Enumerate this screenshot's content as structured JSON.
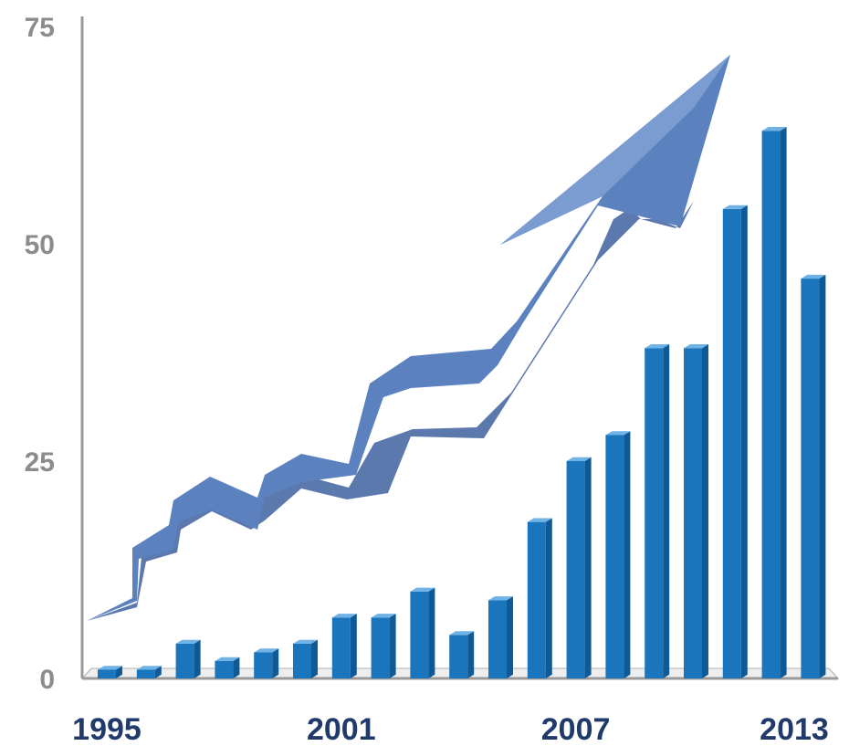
{
  "chart_data": {
    "type": "bar",
    "title": "",
    "xlabel": "",
    "ylabel": "",
    "ylim": [
      0,
      75
    ],
    "yticks": [
      0,
      25,
      50,
      75
    ],
    "x_tick_labels": [
      "1995",
      "2001",
      "2007",
      "2013"
    ],
    "categories": [
      "1995",
      "1996",
      "1997",
      "1998",
      "1999",
      "2000",
      "2001",
      "2002",
      "2003",
      "2004",
      "2005",
      "2006",
      "2007",
      "2008",
      "2009",
      "2010",
      "2011",
      "2012",
      "2013"
    ],
    "values": [
      1,
      1,
      4,
      2,
      3,
      4,
      7,
      7,
      10,
      5,
      9,
      18,
      25,
      28,
      38,
      38,
      54,
      63,
      46
    ],
    "grid": false,
    "legend": "none",
    "decoration": "rising-arrow-icon",
    "colors": {
      "bar": "#1a75bc",
      "bar_dark": "#0f5a96",
      "bar_top": "#6fb2e6",
      "arrow": "#5b82bf",
      "arrow_shade": "#3f62a0",
      "axis": "#8c8c8c"
    }
  }
}
